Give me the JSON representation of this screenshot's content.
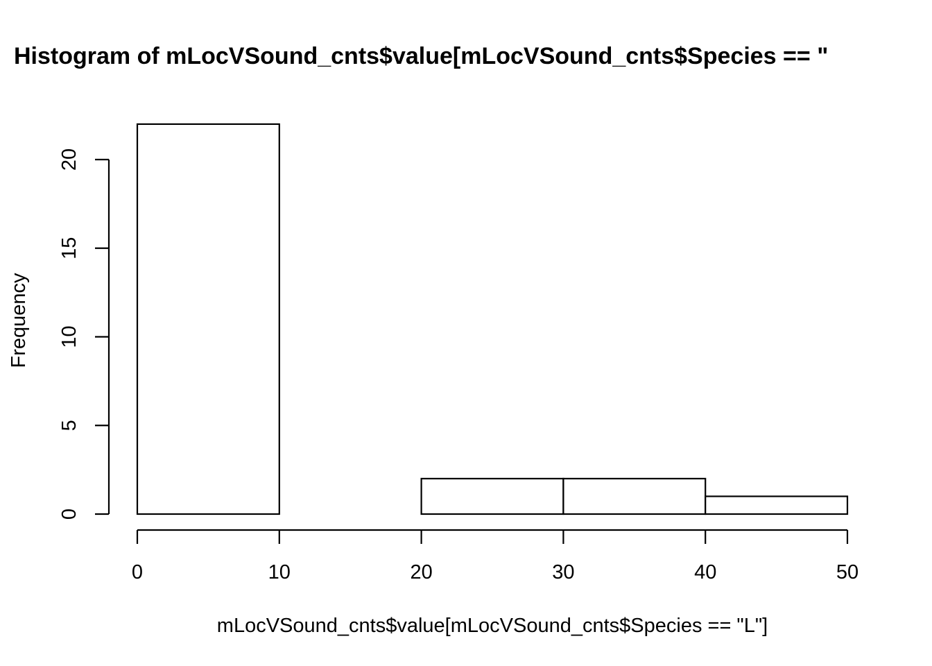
{
  "chart_data": {
    "type": "bar",
    "subtype": "histogram",
    "title": "Histogram of mLocVSound_cnts$value[mLocVSound_cnts$Species == \"",
    "xlabel": "mLocVSound_cnts$value[mLocVSound_cnts$Species == \"L\"]",
    "ylabel": "Frequency",
    "bins": [
      {
        "start": 0,
        "end": 10,
        "count": 22
      },
      {
        "start": 10,
        "end": 20,
        "count": 0
      },
      {
        "start": 20,
        "end": 30,
        "count": 2
      },
      {
        "start": 30,
        "end": 40,
        "count": 2
      },
      {
        "start": 40,
        "end": 50,
        "count": 1
      }
    ],
    "xlim": [
      0,
      50
    ],
    "ylim": [
      0,
      22
    ],
    "x_ticks": [
      "0",
      "10",
      "20",
      "30",
      "40",
      "50"
    ],
    "y_ticks": [
      "0",
      "5",
      "10",
      "15",
      "20"
    ],
    "grid": false,
    "legend": "none",
    "bar_fill": "#ffffff",
    "bar_stroke": "#000000"
  }
}
